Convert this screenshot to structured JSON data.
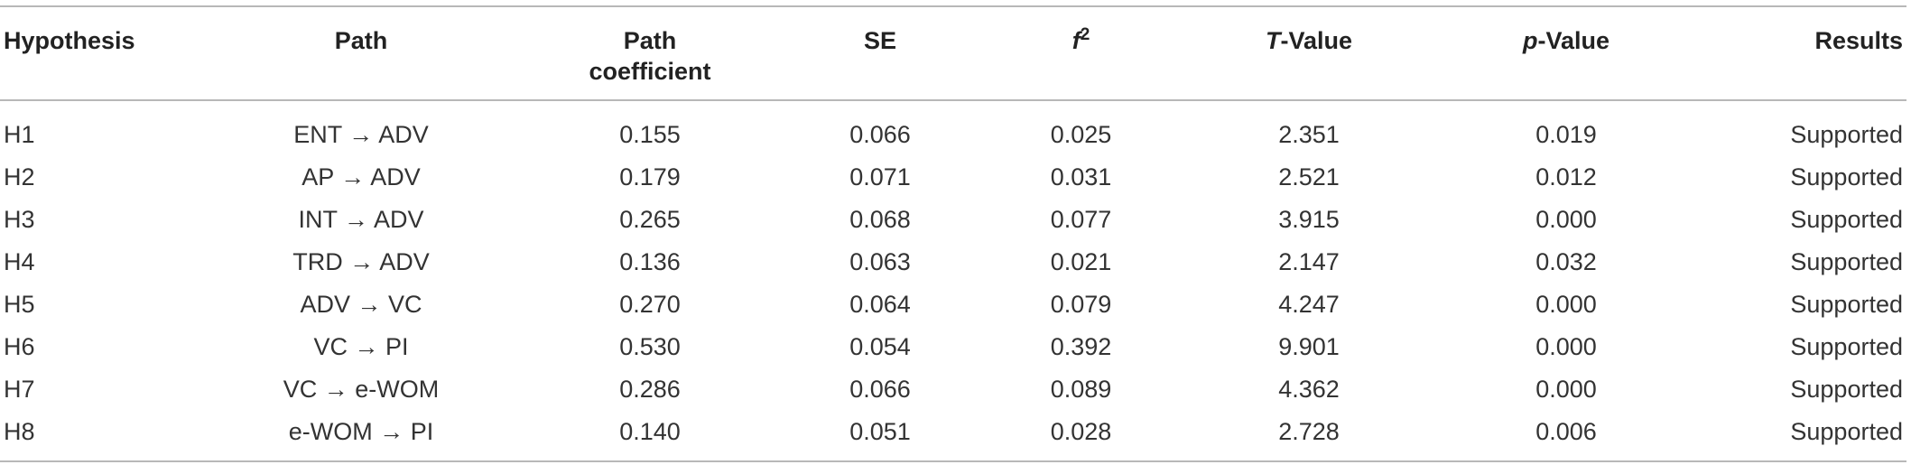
{
  "table": {
    "headers": {
      "hypothesis": "Hypothesis",
      "path": "Path",
      "path_coef_line1": "Path",
      "path_coef_line2": "coefficient",
      "se": "SE",
      "f2_base": "f",
      "f2_sup": "2",
      "t_ital": "T",
      "t_rest": "-Value",
      "p_ital": "p",
      "p_rest": "-Value",
      "results": "Results"
    },
    "rows": [
      {
        "hypothesis": "H1",
        "path": "ENT → ADV",
        "coef": "0.155",
        "se": "0.066",
        "f2": "0.025",
        "t": "2.351",
        "p": "0.019",
        "result": "Supported"
      },
      {
        "hypothesis": "H2",
        "path": "AP → ADV",
        "coef": "0.179",
        "se": "0.071",
        "f2": "0.031",
        "t": "2.521",
        "p": "0.012",
        "result": "Supported"
      },
      {
        "hypothesis": "H3",
        "path": "INT → ADV",
        "coef": "0.265",
        "se": "0.068",
        "f2": "0.077",
        "t": "3.915",
        "p": "0.000",
        "result": "Supported"
      },
      {
        "hypothesis": "H4",
        "path": "TRD → ADV",
        "coef": "0.136",
        "se": "0.063",
        "f2": "0.021",
        "t": "2.147",
        "p": "0.032",
        "result": "Supported"
      },
      {
        "hypothesis": "H5",
        "path": "ADV → VC",
        "coef": "0.270",
        "se": "0.064",
        "f2": "0.079",
        "t": "4.247",
        "p": "0.000",
        "result": "Supported"
      },
      {
        "hypothesis": "H6",
        "path": "VC → PI",
        "coef": "0.530",
        "se": "0.054",
        "f2": "0.392",
        "t": "9.901",
        "p": "0.000",
        "result": "Supported"
      },
      {
        "hypothesis": "H7",
        "path": "VC → e-WOM",
        "coef": "0.286",
        "se": "0.066",
        "f2": "0.089",
        "t": "4.362",
        "p": "0.000",
        "result": "Supported"
      },
      {
        "hypothesis": "H8",
        "path": "e-WOM → PI",
        "coef": "0.140",
        "se": "0.051",
        "f2": "0.028",
        "t": "2.728",
        "p": "0.006",
        "result": "Supported"
      }
    ]
  }
}
